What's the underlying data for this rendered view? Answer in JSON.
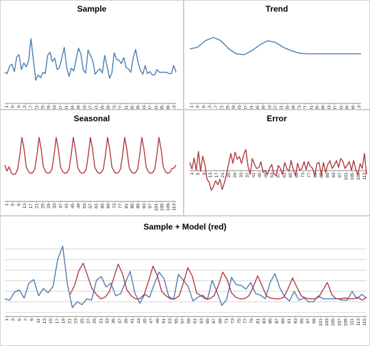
{
  "colors": {
    "sample": "#4a7ab0",
    "model": "#b0383e",
    "axis": "#888888",
    "grid": "#d4d4d4"
  },
  "chart_data": [
    {
      "type": "line",
      "title": "Sample",
      "xlabel": "",
      "ylabel": "",
      "grid": false,
      "x_tick_labels": [
        "1",
        "5",
        "9",
        "13",
        "17",
        "21",
        "25",
        "29",
        "33",
        "37",
        "41",
        "45",
        "49",
        "53",
        "57",
        "61",
        "65",
        "69",
        "73",
        "77",
        "81",
        "85",
        "89",
        "93",
        "97",
        "101",
        "105",
        "109",
        "113"
      ],
      "ylim": [
        0,
        100
      ],
      "series": [
        {
          "color": "#4a7ab0",
          "values": [
            24,
            22,
            33,
            36,
            25,
            47,
            50,
            28,
            38,
            32,
            41,
            74,
            43,
            12,
            20,
            16,
            24,
            22,
            49,
            54,
            40,
            45,
            28,
            31,
            46,
            61,
            31,
            18,
            30,
            26,
            44,
            60,
            51,
            27,
            23,
            57,
            49,
            41,
            21,
            26,
            29,
            23,
            49,
            33,
            15,
            23,
            53,
            43,
            42,
            37,
            46,
            31,
            29,
            24,
            46,
            58,
            39,
            27,
            21,
            34,
            22,
            25,
            20,
            20,
            28,
            24,
            24,
            24,
            24,
            22,
            22,
            34,
            24
          ]
        }
      ]
    },
    {
      "type": "line",
      "title": "Trend",
      "xlabel": "",
      "ylabel": "",
      "grid": false,
      "x_tick_labels": [
        "1",
        "5",
        "9",
        "13",
        "17",
        "21",
        "25",
        "29",
        "33",
        "37",
        "41",
        "45",
        "49",
        "53",
        "57",
        "61",
        "65",
        "69",
        "73",
        "77",
        "81",
        "85",
        "89",
        "93",
        "97",
        "101",
        "105",
        "109",
        "113"
      ],
      "ylim": [
        0,
        100
      ],
      "series": [
        {
          "color": "#4a7ab0",
          "values": [
            58,
            60,
            68,
            72,
            68,
            58,
            52,
            51,
            56,
            63,
            68,
            66,
            60,
            56,
            53,
            52,
            52,
            52,
            52,
            52,
            52,
            52,
            52
          ]
        }
      ]
    },
    {
      "type": "line",
      "title": "Seasonal",
      "xlabel": "",
      "ylabel": "",
      "grid": false,
      "x_tick_labels": [
        "1",
        "5",
        "9",
        "13",
        "17",
        "21",
        "25",
        "29",
        "33",
        "37",
        "41",
        "45",
        "49",
        "53",
        "57",
        "61",
        "65",
        "69",
        "73",
        "77",
        "81",
        "85",
        "89",
        "93",
        "97",
        "101",
        "105",
        "109",
        "113"
      ],
      "ylim": [
        0,
        100
      ],
      "series": [
        {
          "color": "#b0383e",
          "values": [
            35,
            25,
            32,
            22,
            19,
            20,
            28,
            52,
            82,
            62,
            32,
            24,
            21,
            22,
            28,
            52,
            82,
            62,
            32,
            24,
            21,
            22,
            28,
            52,
            82,
            62,
            32,
            24,
            21,
            22,
            28,
            52,
            82,
            62,
            32,
            24,
            21,
            22,
            28,
            52,
            82,
            62,
            32,
            24,
            21,
            22,
            28,
            52,
            82,
            62,
            32,
            24,
            21,
            22,
            28,
            52,
            82,
            62,
            32,
            24,
            21,
            22,
            28,
            52,
            82,
            62,
            32,
            24,
            21,
            22,
            28,
            52,
            82,
            62,
            32,
            24,
            21,
            22,
            29,
            30,
            35
          ]
        }
      ]
    },
    {
      "type": "line",
      "title": "Error",
      "xlabel": "",
      "ylabel": "",
      "grid": false,
      "x_tick_labels": [
        "1",
        "5",
        "9",
        "13",
        "17",
        "21",
        "25",
        "29",
        "33",
        "37",
        "41",
        "45",
        "49",
        "53",
        "57",
        "61",
        "65",
        "69",
        "73",
        "77",
        "81",
        "85",
        "89",
        "93",
        "97",
        "101",
        "105",
        "109",
        "113"
      ],
      "ylim": [
        -10,
        10
      ],
      "series": [
        {
          "color": "#b0383e",
          "values": [
            1.0,
            -0.6,
            2.1,
            -1.0,
            3.8,
            -1.2,
            2.6,
            0.5,
            -3.2,
            -4.0,
            -6.0,
            -5.0,
            -3.6,
            -4.6,
            -3.2,
            -5.8,
            -4.2,
            -2.0,
            0.6,
            3.3,
            0.8,
            3.6,
            1.8,
            2.5,
            0.8,
            3.0,
            4.3,
            0.0,
            -2.0,
            2.0,
            0.5,
            -0.5,
            -0.3,
            1.2,
            -1.5,
            -1.0,
            -2.0,
            -0.5,
            0.5,
            -1.8,
            -2.3,
            0.3,
            -0.5,
            -2.0,
            1.0,
            -0.5,
            -1.2,
            1.5,
            -0.8,
            -2.3,
            0.8,
            -1.0,
            -0.5,
            1.2,
            -0.8,
            1.2,
            0.0,
            -0.5,
            -2.3,
            0.8,
            1.0,
            -2.2,
            1.0,
            -1.5,
            0.5,
            1.5,
            -0.5,
            0.3,
            1.5,
            -0.2,
            2.0,
            1.3,
            -0.5,
            0.3,
            1.2,
            -1.0,
            1.5,
            -0.8,
            -2.0,
            0.7,
            -0.5,
            3.3,
            -2.0
          ]
        }
      ]
    },
    {
      "type": "line",
      "title": "Sample + Model (red)",
      "xlabel": "",
      "ylabel": "",
      "grid": true,
      "x_tick_labels": [
        "1",
        "3",
        "5",
        "7",
        "9",
        "11",
        "13",
        "15",
        "17",
        "19",
        "21",
        "23",
        "25",
        "27",
        "29",
        "31",
        "33",
        "35",
        "37",
        "39",
        "41",
        "43",
        "45",
        "47",
        "49",
        "51",
        "53",
        "55",
        "57",
        "59",
        "61",
        "63",
        "65",
        "67",
        "69",
        "71",
        "73",
        "75",
        "77",
        "79",
        "81",
        "83",
        "85",
        "87",
        "89",
        "91",
        "93",
        "95",
        "97",
        "99",
        "101",
        "103",
        "105",
        "107",
        "109",
        "111",
        "113",
        "115"
      ],
      "ylim": [
        0,
        100
      ],
      "series": [
        {
          "color": "#4a7ab0",
          "values": [
            24,
            22,
            33,
            36,
            25,
            45,
            50,
            28,
            38,
            32,
            41,
            78,
            95,
            43,
            12,
            20,
            16,
            24,
            22,
            49,
            54,
            40,
            45,
            28,
            31,
            46,
            61,
            31,
            18,
            30,
            26,
            44,
            60,
            51,
            27,
            23,
            57,
            49,
            41,
            21,
            26,
            29,
            23,
            49,
            33,
            15,
            23,
            53,
            43,
            42,
            37,
            46,
            31,
            29,
            24,
            46,
            58,
            39,
            27,
            21,
            34,
            22,
            25,
            20,
            20,
            28,
            24,
            24,
            24,
            24,
            22,
            22,
            34,
            24,
            30,
            25
          ]
        },
        {
          "color": "#b0383e",
          "values": [
            null,
            null,
            null,
            null,
            null,
            null,
            null,
            null,
            null,
            null,
            null,
            null,
            null,
            null,
            null,
            30,
            42,
            62,
            72,
            55,
            38,
            30,
            24,
            26,
            34,
            52,
            71,
            58,
            36,
            28,
            24,
            24,
            30,
            48,
            68,
            55,
            34,
            28,
            24,
            24,
            28,
            46,
            66,
            55,
            32,
            28,
            24,
            24,
            28,
            42,
            60,
            50,
            32,
            26,
            24,
            24,
            28,
            40,
            55,
            42,
            28,
            25,
            24,
            24,
            26,
            38,
            52,
            40,
            28,
            25,
            24,
            24,
            26,
            36,
            46,
            30,
            24,
            24,
            25,
            24,
            24,
            26,
            22,
            26
          ]
        }
      ]
    }
  ]
}
